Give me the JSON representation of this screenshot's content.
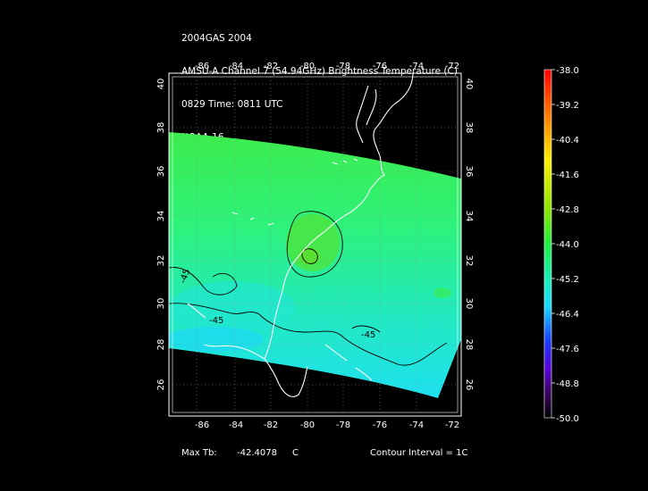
{
  "header": {
    "line1": "2004GAS 2004",
    "line2": "AMSU-A Channel 7 (54.94GHz) Brightness Temperature (C)",
    "line3": "0829 Time: 0811 UTC",
    "line4": "NOAA-16"
  },
  "map": {
    "lon_ticks": [
      "-86",
      "-84",
      "-82",
      "-80",
      "-78",
      "-76",
      "-74",
      "-72"
    ],
    "lat_ticks": [
      "40",
      "38",
      "36",
      "34",
      "32",
      "30",
      "28",
      "26"
    ],
    "contour_labels": [
      "-45",
      "-45",
      "-45"
    ],
    "swath_colors": {
      "warm": "#4ee61c",
      "mid": "#2ff06e",
      "cool": "#24eabf",
      "coolest": "#1ee0f2"
    },
    "coastline_color": "#ffffff",
    "contour_color": "#000000"
  },
  "colorbar": {
    "labels": [
      "-38.0",
      "-39.2",
      "-40.4",
      "-41.6",
      "-42.8",
      "-44.0",
      "-45.2",
      "-46.4",
      "-47.6",
      "-48.8",
      "-50.0"
    ]
  },
  "footer": {
    "max_label": "Max Tb:",
    "max_value": "-42.4078",
    "max_unit": "C",
    "contour_interval": "Contour Interval = 1C"
  }
}
